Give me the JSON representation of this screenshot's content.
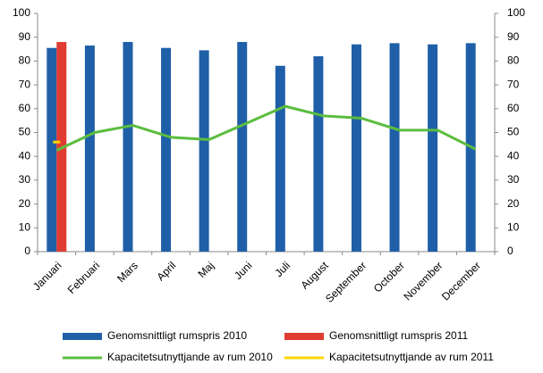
{
  "chart_data": {
    "type": "bar-line",
    "categories": [
      "Januari",
      "Februari",
      "Mars",
      "April",
      "Maj",
      "Juni",
      "Juli",
      "August",
      "September",
      "October",
      "November",
      "December"
    ],
    "series": [
      {
        "name": "Genomsnittligt rumspris 2010",
        "type": "bar",
        "color": "#1f5fa8",
        "values": [
          85.5,
          86.5,
          88,
          85.5,
          84.5,
          88,
          78,
          82,
          87,
          87.5,
          87,
          87.5
        ]
      },
      {
        "name": "Genomsnittligt rumspris 2011",
        "type": "bar",
        "color": "#e03c31",
        "values": [
          88,
          null,
          null,
          null,
          null,
          null,
          null,
          null,
          null,
          null,
          null,
          null
        ]
      },
      {
        "name": "Kapacitetsutnyttjande av rum 2010",
        "type": "line",
        "axis": "y2",
        "color": "#5bbd3f",
        "values": [
          42.5,
          50,
          53,
          48,
          47,
          54,
          61,
          57,
          56,
          51,
          51,
          43
        ]
      },
      {
        "name": "Kapacitetsutnyttjande av rum 2011",
        "type": "line",
        "axis": "y2",
        "color": "#ffd700",
        "values": [
          46,
          null,
          null,
          null,
          null,
          null,
          null,
          null,
          null,
          null,
          null,
          null
        ]
      }
    ],
    "ylim": [
      0,
      100
    ],
    "yticks": [
      0,
      10,
      20,
      30,
      40,
      50,
      60,
      70,
      80,
      90,
      100
    ],
    "y2lim": [
      0,
      100
    ],
    "y2ticks": [
      0,
      10,
      20,
      30,
      40,
      50,
      60,
      70,
      80,
      90,
      100
    ]
  }
}
